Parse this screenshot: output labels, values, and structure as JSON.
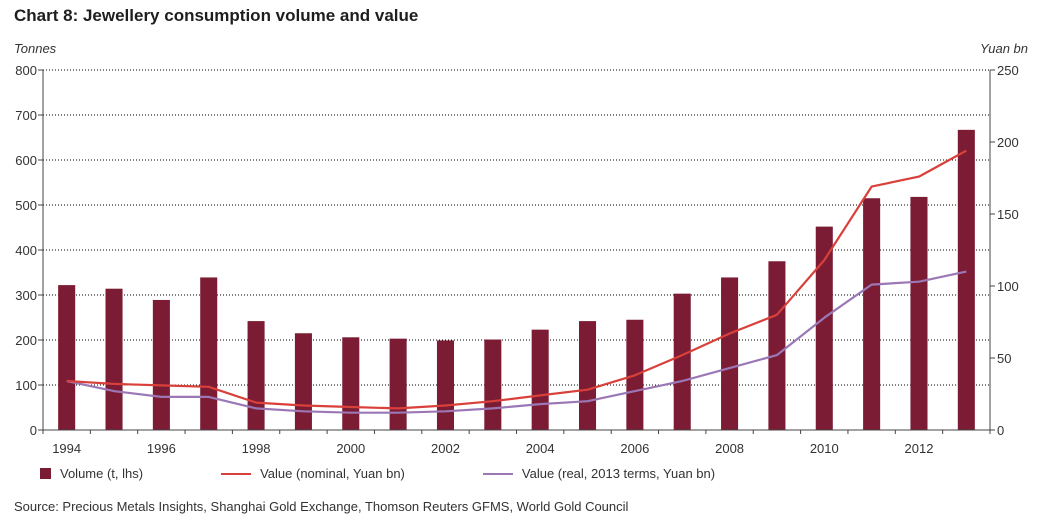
{
  "title": "Chart 8: Jewellery consumption volume and value",
  "source": "Source: Precious Metals Insights, Shanghai Gold Exchange, Thomson Reuters GFMS, World Gold Council",
  "colors": {
    "bar": "#7b1c34",
    "nominal": "#d9403a",
    "real": "#9b78b5",
    "grid": "#000000"
  },
  "chart_data": {
    "type": "bar",
    "title": "Chart 8: Jewellery consumption volume and value",
    "ylabel": "Tonnes",
    "y2label": "Yuan bn",
    "ylim": [
      0,
      800
    ],
    "y2lim": [
      0,
      250
    ],
    "yticks": [
      0,
      100,
      200,
      300,
      400,
      500,
      600,
      700,
      800
    ],
    "y2ticks": [
      0,
      50,
      100,
      150,
      200,
      250
    ],
    "grid": true,
    "legend_position": "bottom",
    "categories": [
      "1994",
      "1995",
      "1996",
      "1997",
      "1998",
      "1999",
      "2000",
      "2001",
      "2002",
      "2003",
      "2004",
      "2005",
      "2006",
      "2007",
      "2008",
      "2009",
      "2010",
      "2011",
      "2012",
      "2013"
    ],
    "x_tick_labels": [
      "1994",
      "1996",
      "1998",
      "2000",
      "2002",
      "2004",
      "2006",
      "2008",
      "2010",
      "2012"
    ],
    "series": [
      {
        "name": "Volume (t, lhs)",
        "type": "bar",
        "axis": "left",
        "values": [
          322,
          314,
          289,
          339,
          242,
          215,
          206,
          203,
          199,
          201,
          223,
          242,
          245,
          303,
          339,
          375,
          452,
          515,
          518,
          667
        ]
      },
      {
        "name": "Value (nominal, Yuan bn)",
        "type": "line",
        "axis": "right",
        "values": [
          34,
          32,
          31,
          30,
          19,
          17,
          16,
          15,
          17,
          20,
          24,
          28,
          38,
          52,
          67,
          80,
          118,
          169,
          176,
          194
        ]
      },
      {
        "name": "Value (real, 2013 terms, Yuan bn)",
        "type": "line",
        "axis": "right",
        "values": [
          34,
          27,
          23,
          23,
          15,
          13,
          12,
          12,
          13,
          15,
          18,
          20,
          27,
          34,
          43,
          52,
          78,
          101,
          103,
          110
        ]
      }
    ]
  }
}
